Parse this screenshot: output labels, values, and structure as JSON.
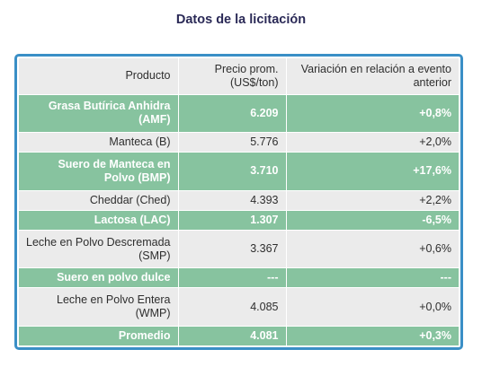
{
  "title": "Datos de la licitación",
  "table": {
    "headers": {
      "product": "Producto",
      "price": "Precio prom. (US$/ton)",
      "variation": "Variación en relación a evento anterior"
    },
    "rows": [
      {
        "product": "Grasa Butírica Anhidra (AMF)",
        "price": "6.209",
        "variation": "+0,8%",
        "style": "green"
      },
      {
        "product": "Manteca (B)",
        "price": "5.776",
        "variation": "+2,0%",
        "style": "gray"
      },
      {
        "product": "Suero de Manteca en Polvo (BMP)",
        "price": "3.710",
        "variation": "+17,6%",
        "style": "green"
      },
      {
        "product": "Cheddar (Ched)",
        "price": "4.393",
        "variation": "+2,2%",
        "style": "gray"
      },
      {
        "product": "Lactosa (LAC)",
        "price": "1.307",
        "variation": "-6,5%",
        "style": "green"
      },
      {
        "product": "Leche en Polvo Descremada (SMP)",
        "price": "3.367",
        "variation": "+0,6%",
        "style": "gray"
      },
      {
        "product": "Suero en polvo dulce",
        "price": "---",
        "variation": "---",
        "style": "green"
      },
      {
        "product": "Leche en Polvo Entera (WMP)",
        "price": "4.085",
        "variation": "+0,0%",
        "style": "gray"
      },
      {
        "product": "Promedio",
        "price": "4.081",
        "variation": "+0,3%",
        "style": "green"
      }
    ]
  },
  "colors": {
    "title": "#2b2a57",
    "frame_border": "#3a8fc6",
    "green_row": "#87c39f",
    "gray_row": "#ebebeb"
  }
}
